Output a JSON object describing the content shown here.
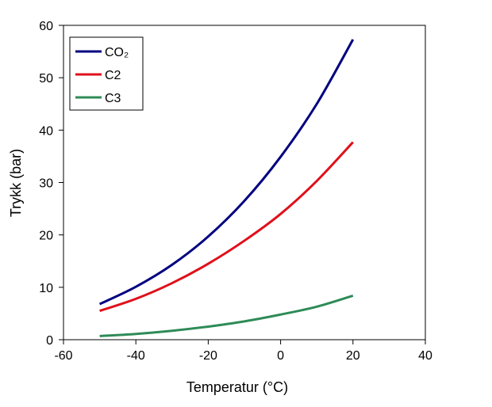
{
  "chart_data": {
    "type": "line",
    "title": "",
    "xlabel": "Temperatur (°C)",
    "ylabel": "Trykk (bar)",
    "xlim": [
      -60,
      40
    ],
    "ylim": [
      0,
      60
    ],
    "x_ticks": [
      "-60",
      "-40",
      "-20",
      "0",
      "20",
      "40"
    ],
    "y_ticks": [
      "0",
      "10",
      "20",
      "30",
      "40",
      "50",
      "60"
    ],
    "grid": false,
    "legend_position": "top-left",
    "series": [
      {
        "name": "CO₂",
        "color": "#000080",
        "x": [
          -50,
          -40,
          -30,
          -20,
          -10,
          0,
          10,
          20
        ],
        "y": [
          6.8,
          10.1,
          14.3,
          19.7,
          26.5,
          34.9,
          45.0,
          57.3
        ]
      },
      {
        "name": "C2",
        "color": "#e0101a",
        "x": [
          -50,
          -40,
          -30,
          -20,
          -10,
          0,
          10,
          20
        ],
        "y": [
          5.5,
          7.8,
          10.8,
          14.5,
          18.9,
          24.0,
          30.3,
          37.7
        ]
      },
      {
        "name": "C3",
        "color": "#2e8b57",
        "x": [
          -50,
          -40,
          -30,
          -20,
          -10,
          0,
          10,
          20
        ],
        "y": [
          0.7,
          1.1,
          1.7,
          2.5,
          3.5,
          4.8,
          6.3,
          8.4
        ]
      }
    ]
  }
}
